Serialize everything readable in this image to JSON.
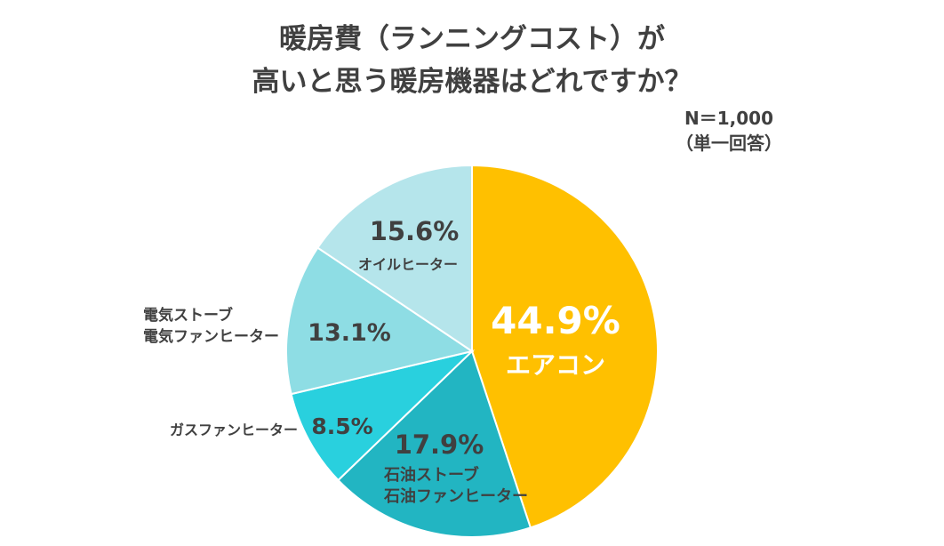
{
  "title_lines": [
    "暖房費（ランニングコスト）が",
    "高いと思う暖房機器はどれですか？"
  ],
  "sample_note": "N＝1,000",
  "answer_note": "（単一回答）",
  "chart_data": {
    "type": "pie",
    "title": "暖房費（ランニングコスト）が高いと思う暖房機器はどれですか？",
    "start_angle": "12 o'clock, clockwise",
    "slices": [
      {
        "label_lines": [
          "エアコン"
        ],
        "value": 44.9,
        "value_label": "44.9%",
        "color": "#FFC000",
        "text_color": "#FFFFFF"
      },
      {
        "label_lines": [
          "石油ストーブ",
          "石油ファンヒーター"
        ],
        "value": 17.9,
        "value_label": "17.9%",
        "color": "#22B5C2",
        "text_color": "#404040"
      },
      {
        "label_lines": [
          "ガスファンヒーター"
        ],
        "value": 8.5,
        "value_label": "8.5%",
        "color": "#29D0DE",
        "text_color": "#404040"
      },
      {
        "label_lines": [
          "電気ストーブ",
          "電気ファンヒーター"
        ],
        "value": 13.1,
        "value_label": "13.1%",
        "color": "#8EDDE4",
        "text_color": "#404040"
      },
      {
        "label_lines": [
          "オイルヒーター"
        ],
        "value": 15.6,
        "value_label": "15.6%",
        "color": "#B5E5EB",
        "text_color": "#404040"
      }
    ]
  }
}
